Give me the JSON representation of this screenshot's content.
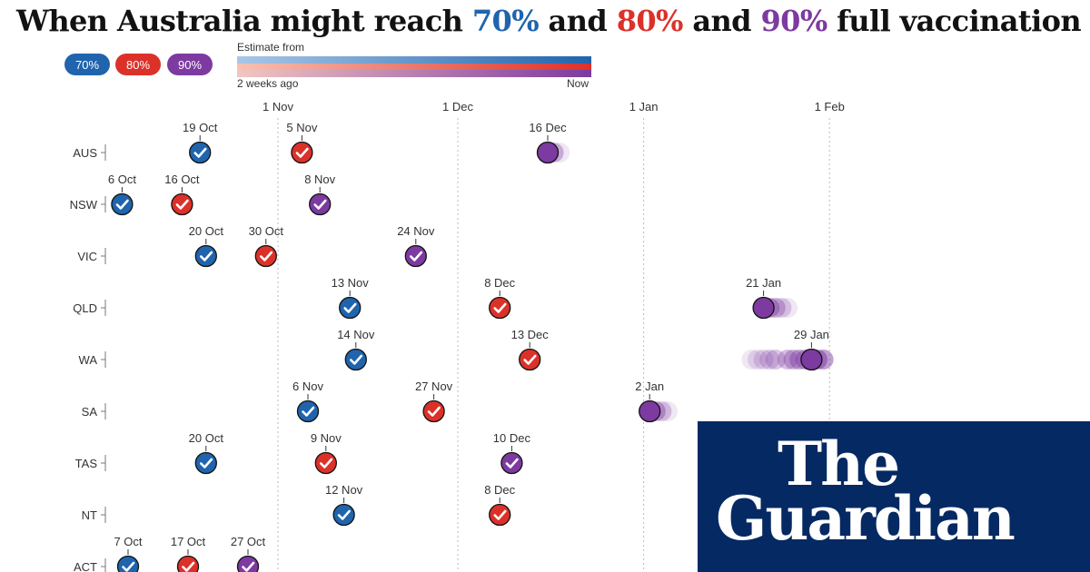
{
  "title": {
    "before": "When Australia might reach ",
    "p70": "70%",
    "and1": " and ",
    "p80": "80%",
    "and2": " and ",
    "p90": "90%",
    "after": " full vaccination"
  },
  "legend": [
    {
      "label": "70%",
      "color": "#1f64ad"
    },
    {
      "label": "80%",
      "color": "#dc3129"
    },
    {
      "label": "90%",
      "color": "#7d3aa0"
    }
  ],
  "estimate": {
    "heading": "Estimate from",
    "left_label": "2 weeks ago",
    "right_label": "Now"
  },
  "logo": {
    "line1": "The",
    "line2": "Guardian"
  },
  "chart_data": {
    "type": "scatter",
    "title": "When Australia might reach 70% and 80% and 90% full vaccination",
    "x_axis": {
      "type": "date",
      "range": [
        "2021-10-01",
        "2022-02-09"
      ],
      "ticks": [
        {
          "date": "2021-11-01",
          "label": "1 Nov"
        },
        {
          "date": "2021-12-01",
          "label": "1 Dec"
        },
        {
          "date": "2022-01-01",
          "label": "1 Jan"
        },
        {
          "date": "2022-02-01",
          "label": "1 Feb"
        }
      ],
      "gridlines": "dashed"
    },
    "categories": [
      "AUS",
      "NSW",
      "VIC",
      "QLD",
      "WA",
      "SA",
      "TAS",
      "NT",
      "ACT"
    ],
    "series": [
      {
        "name": "70%",
        "color": "#1f64ad",
        "points": [
          {
            "state": "AUS",
            "date": "2021-10-19",
            "label": "19 Oct",
            "reached": true
          },
          {
            "state": "NSW",
            "date": "2021-10-06",
            "label": "6 Oct",
            "reached": true
          },
          {
            "state": "VIC",
            "date": "2021-10-20",
            "label": "20 Oct",
            "reached": true
          },
          {
            "state": "QLD",
            "date": "2021-11-13",
            "label": "13 Nov",
            "reached": true
          },
          {
            "state": "WA",
            "date": "2021-11-14",
            "label": "14 Nov",
            "reached": true
          },
          {
            "state": "SA",
            "date": "2021-11-06",
            "label": "6 Nov",
            "reached": true
          },
          {
            "state": "TAS",
            "date": "2021-10-20",
            "label": "20 Oct",
            "reached": true
          },
          {
            "state": "NT",
            "date": "2021-11-12",
            "label": "12 Nov",
            "reached": true
          },
          {
            "state": "ACT",
            "date": "2021-10-07",
            "label": "7 Oct",
            "reached": true
          }
        ]
      },
      {
        "name": "80%",
        "color": "#dc3129",
        "points": [
          {
            "state": "AUS",
            "date": "2021-11-05",
            "label": "5 Nov",
            "reached": true
          },
          {
            "state": "NSW",
            "date": "2021-10-16",
            "label": "16 Oct",
            "reached": true
          },
          {
            "state": "VIC",
            "date": "2021-10-30",
            "label": "30 Oct",
            "reached": true
          },
          {
            "state": "QLD",
            "date": "2021-12-08",
            "label": "8 Dec",
            "reached": true
          },
          {
            "state": "WA",
            "date": "2021-12-13",
            "label": "13 Dec",
            "reached": true
          },
          {
            "state": "SA",
            "date": "2021-11-27",
            "label": "27 Nov",
            "reached": true
          },
          {
            "state": "TAS",
            "date": "2021-11-09",
            "label": "9 Nov",
            "reached": true
          },
          {
            "state": "NT",
            "date": "2021-12-08",
            "label": "8 Dec",
            "reached": true
          },
          {
            "state": "ACT",
            "date": "2021-10-17",
            "label": "17 Oct",
            "reached": true
          }
        ]
      },
      {
        "name": "90%",
        "color": "#7d3aa0",
        "points": [
          {
            "state": "AUS",
            "date": "2021-12-16",
            "label": "16 Dec",
            "reached": false,
            "history": [
              "2021-12-18",
              "2021-12-17",
              "2021-12-16"
            ]
          },
          {
            "state": "NSW",
            "date": "2021-11-08",
            "label": "8 Nov",
            "reached": true
          },
          {
            "state": "VIC",
            "date": "2021-11-24",
            "label": "24 Nov",
            "reached": true
          },
          {
            "state": "QLD",
            "date": "2022-01-21",
            "label": "21 Jan",
            "reached": false,
            "history": [
              "2022-01-25",
              "2022-01-24",
              "2022-01-23",
              "2022-01-22",
              "2022-01-21"
            ]
          },
          {
            "state": "WA",
            "date": "2022-01-29",
            "label": "29 Jan",
            "reached": false,
            "history": [
              "2022-01-19",
              "2022-01-20",
              "2022-01-21",
              "2022-01-22",
              "2022-01-23",
              "2022-01-25",
              "2022-01-26",
              "2022-01-27",
              "2022-01-28",
              "2022-01-31",
              "2022-01-30",
              "2022-01-29"
            ]
          },
          {
            "state": "SA",
            "date": "2022-01-02",
            "label": "2 Jan",
            "reached": false,
            "history": [
              "2022-01-05",
              "2022-01-04",
              "2022-01-03",
              "2022-01-02"
            ]
          },
          {
            "state": "TAS",
            "date": "2021-12-10",
            "label": "10 Dec",
            "reached": true
          },
          {
            "state": "ACT",
            "date": "2021-10-27",
            "label": "27 Oct",
            "reached": true
          }
        ]
      }
    ]
  }
}
